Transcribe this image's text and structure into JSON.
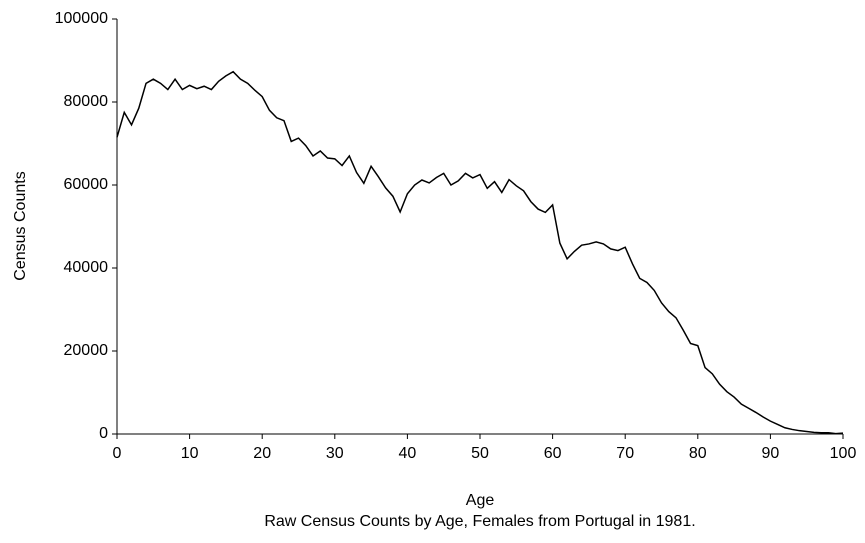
{
  "chart_data": {
    "type": "line",
    "x_label": "Age",
    "y_label": "Census Counts",
    "caption": "Raw Census Counts by Age, Females from Portugal in 1981.",
    "x": [
      0,
      1,
      2,
      3,
      4,
      5,
      6,
      7,
      8,
      9,
      10,
      11,
      12,
      13,
      14,
      15,
      16,
      17,
      18,
      19,
      20,
      21,
      22,
      23,
      24,
      25,
      26,
      27,
      28,
      29,
      30,
      31,
      32,
      33,
      34,
      35,
      36,
      37,
      38,
      39,
      40,
      41,
      42,
      43,
      44,
      45,
      46,
      47,
      48,
      49,
      50,
      51,
      52,
      53,
      54,
      55,
      56,
      57,
      58,
      59,
      60,
      61,
      62,
      63,
      64,
      65,
      66,
      67,
      68,
      69,
      70,
      71,
      72,
      73,
      74,
      75,
      76,
      77,
      78,
      79,
      80,
      81,
      82,
      83,
      84,
      85,
      86,
      87,
      88,
      89,
      90,
      91,
      92,
      93,
      94,
      95,
      96,
      97,
      98,
      99,
      100
    ],
    "series": [
      {
        "color": "#000000",
        "values": [
          71500,
          77500,
          74500,
          78500,
          84500,
          85500,
          84500,
          83000,
          85500,
          83000,
          84000,
          83200,
          83800,
          83000,
          85000,
          86300,
          87300,
          85500,
          84500,
          82800,
          81300,
          78000,
          76200,
          75500,
          70500,
          71300,
          69500,
          67000,
          68200,
          66500,
          66300,
          64700,
          67000,
          63000,
          60400,
          64500,
          62000,
          59300,
          57300,
          53500,
          57900,
          60000,
          61200,
          60500,
          61800,
          62800,
          60000,
          61000,
          62800,
          61700,
          62500,
          59200,
          60800,
          58200,
          61300,
          59800,
          58600,
          56000,
          54200,
          53400,
          55200,
          46000,
          42200,
          44000,
          45500,
          45800,
          46300,
          45800,
          44600,
          44200,
          45000,
          41000,
          37500,
          36500,
          34600,
          31600,
          29500,
          28000,
          25000,
          21800,
          21300,
          16000,
          14500,
          12000,
          10200,
          8900,
          7200,
          6200,
          5200,
          4100,
          3100,
          2300,
          1500,
          1100,
          800,
          600,
          400,
          300,
          300,
          100,
          200
        ]
      }
    ],
    "xlim": [
      0,
      100
    ],
    "xticks": [
      0,
      10,
      20,
      30,
      40,
      50,
      60,
      70,
      80,
      90,
      100
    ],
    "ylim": [
      0,
      100000
    ],
    "yticks": [
      0,
      20000,
      40000,
      60000,
      80000,
      100000
    ],
    "grid": false
  }
}
